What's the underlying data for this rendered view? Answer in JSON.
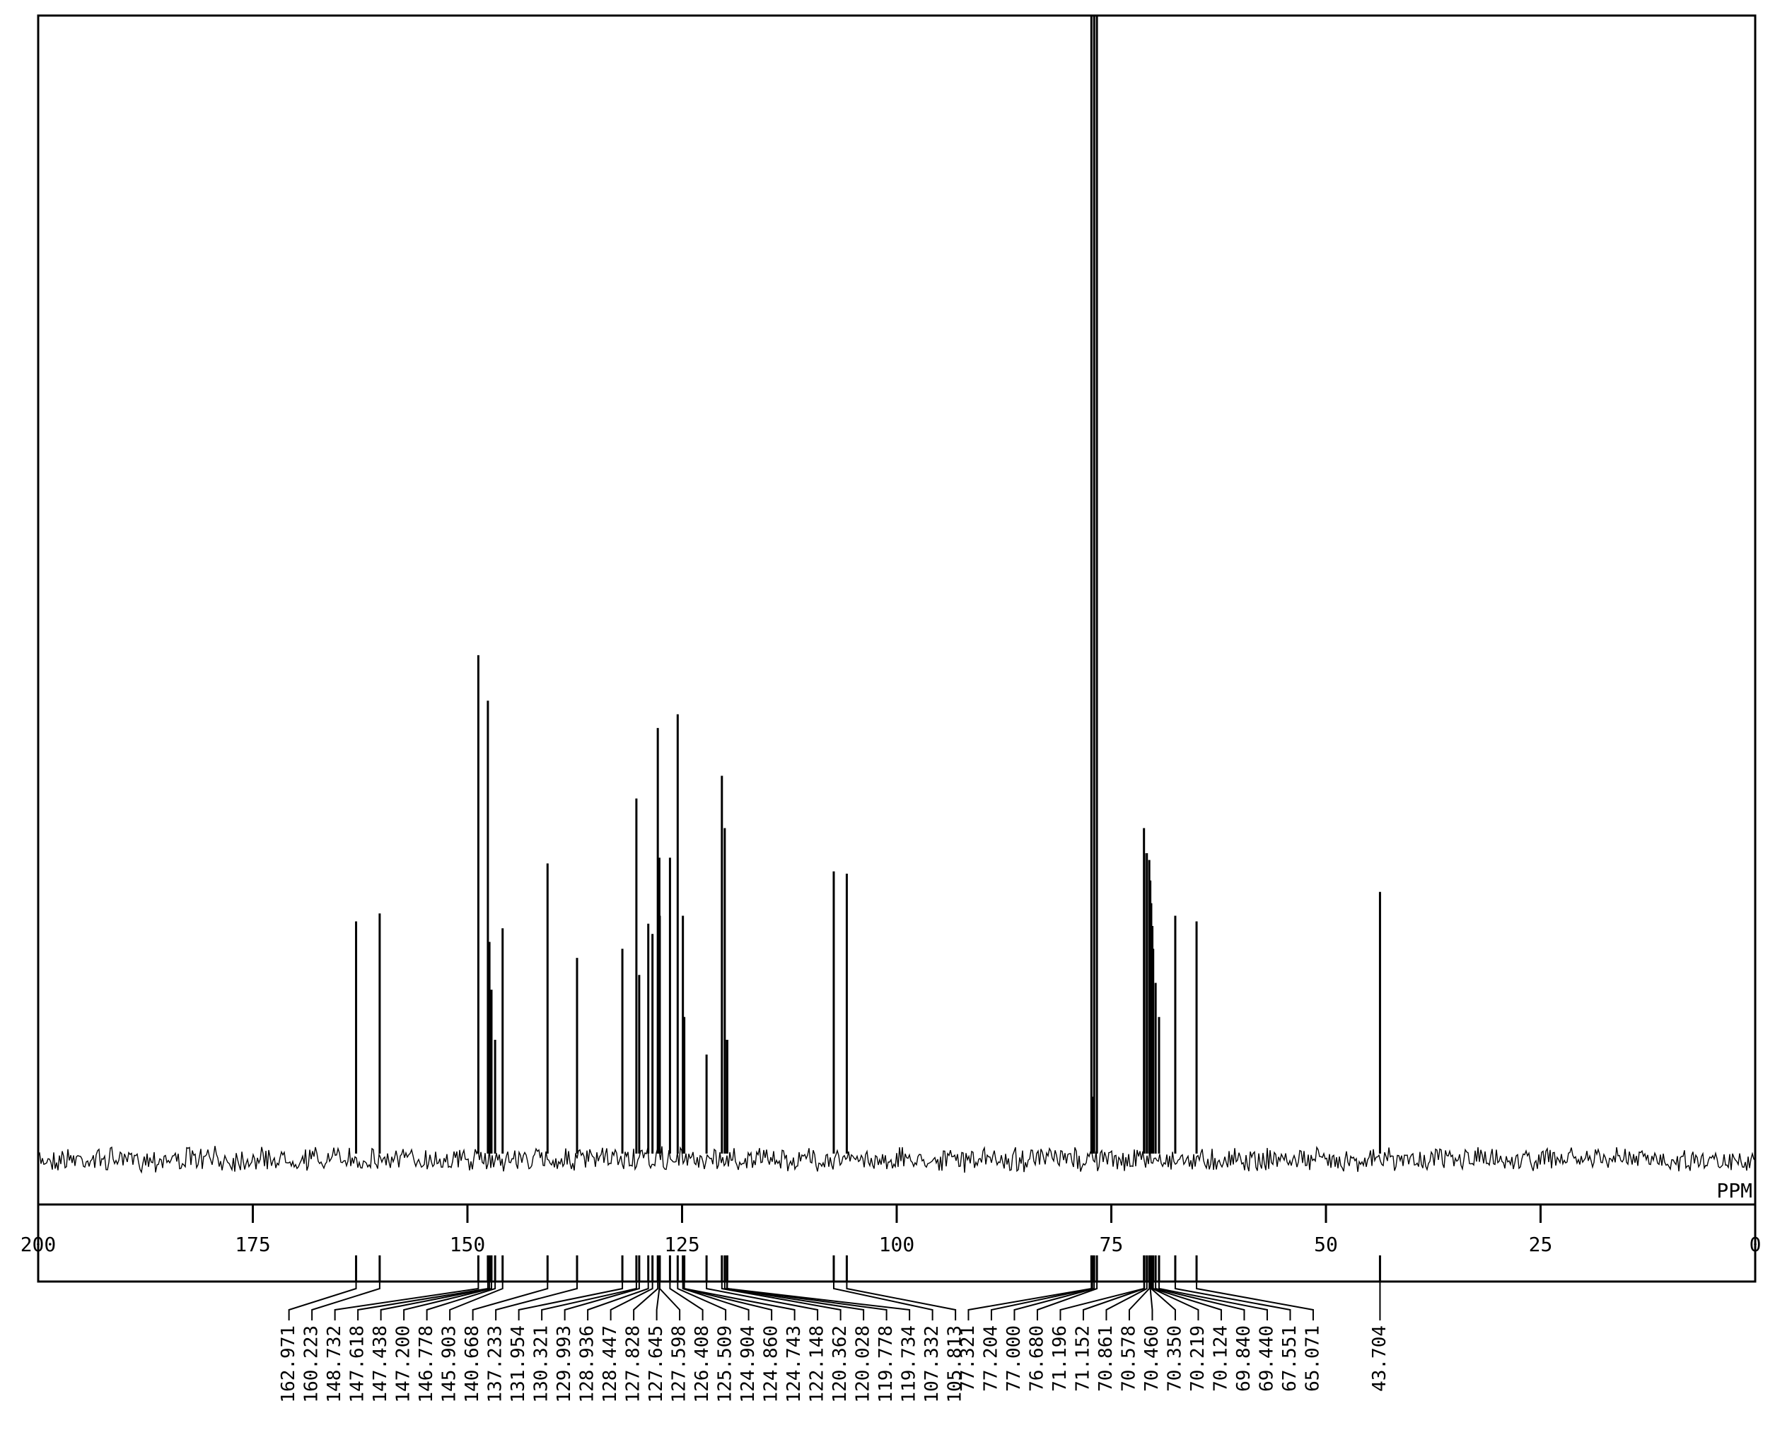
{
  "chart_data": {
    "type": "spectrum",
    "x_label": "PPM",
    "xlim": [
      200,
      0
    ],
    "xticks": [
      200,
      175,
      150,
      125,
      100,
      75,
      50,
      25,
      0
    ],
    "ylim": [
      0,
      100
    ],
    "color": "#000000",
    "x": [
      {
        "value": 162.971,
        "label": "162.971"
      },
      {
        "value": 160.223,
        "label": "160.223"
      },
      {
        "value": 148.732,
        "label": "148.732"
      },
      {
        "value": 147.618,
        "label": "147.618"
      },
      {
        "value": 147.438,
        "label": "147.438"
      },
      {
        "value": 147.2,
        "label": "147.200"
      },
      {
        "value": 146.778,
        "label": "146.778"
      },
      {
        "value": 145.903,
        "label": "145.903"
      },
      {
        "value": 140.668,
        "label": "140.668"
      },
      {
        "value": 137.233,
        "label": "137.233"
      },
      {
        "value": 131.954,
        "label": "131.954"
      },
      {
        "value": 130.321,
        "label": "130.321"
      },
      {
        "value": 129.993,
        "label": "129.993"
      },
      {
        "value": 128.936,
        "label": "128.936"
      },
      {
        "value": 128.447,
        "label": "128.447"
      },
      {
        "value": 127.828,
        "label": "127.828"
      },
      {
        "value": 127.645,
        "label": "127.645"
      },
      {
        "value": 127.598,
        "label": "127.598"
      },
      {
        "value": 126.408,
        "label": "126.408"
      },
      {
        "value": 125.509,
        "label": "125.509"
      },
      {
        "value": 124.904,
        "label": "124.904"
      },
      {
        "value": 124.86,
        "label": "124.860"
      },
      {
        "value": 124.743,
        "label": "124.743"
      },
      {
        "value": 122.148,
        "label": "122.148"
      },
      {
        "value": 120.362,
        "label": "120.362"
      },
      {
        "value": 120.028,
        "label": "120.028"
      },
      {
        "value": 119.778,
        "label": "119.778"
      },
      {
        "value": 119.734,
        "label": "119.734"
      },
      {
        "value": 107.332,
        "label": "107.332"
      },
      {
        "value": 105.813,
        "label": "105.813"
      },
      {
        "value": 77.321,
        "label": "77.321"
      },
      {
        "value": 77.204,
        "label": "77.204"
      },
      {
        "value": 77.0,
        "label": "77.000"
      },
      {
        "value": 76.68,
        "label": "76.680"
      },
      {
        "value": 71.196,
        "label": "71.196"
      },
      {
        "value": 71.152,
        "label": "71.152"
      },
      {
        "value": 70.861,
        "label": "70.861"
      },
      {
        "value": 70.578,
        "label": "70.578"
      },
      {
        "value": 70.46,
        "label": "70.460"
      },
      {
        "value": 70.35,
        "label": "70.350"
      },
      {
        "value": 70.219,
        "label": "70.219"
      },
      {
        "value": 70.124,
        "label": "70.124"
      },
      {
        "value": 69.84,
        "label": "69.840"
      },
      {
        "value": 69.44,
        "label": "69.440"
      },
      {
        "value": 67.551,
        "label": "67.551"
      },
      {
        "value": 65.071,
        "label": "65.071"
      },
      {
        "value": 43.704,
        "label": "43.704"
      }
    ],
    "values": [
      20.4,
      21.1,
      43.8,
      39.8,
      18.6,
      14.4,
      10,
      19.8,
      25.5,
      17.2,
      18.0,
      31.2,
      15.7,
      20.2,
      19.3,
      37.4,
      26.0,
      20.9,
      26.0,
      38.6,
      20.9,
      12,
      12,
      8.7,
      33.2,
      28.6,
      10,
      10,
      24.8,
      24.6,
      100,
      5,
      100,
      100,
      28.6,
      26.4,
      26.4,
      25.8,
      24,
      22,
      20,
      18,
      15,
      12,
      20.9,
      20.4,
      23.0
    ]
  }
}
